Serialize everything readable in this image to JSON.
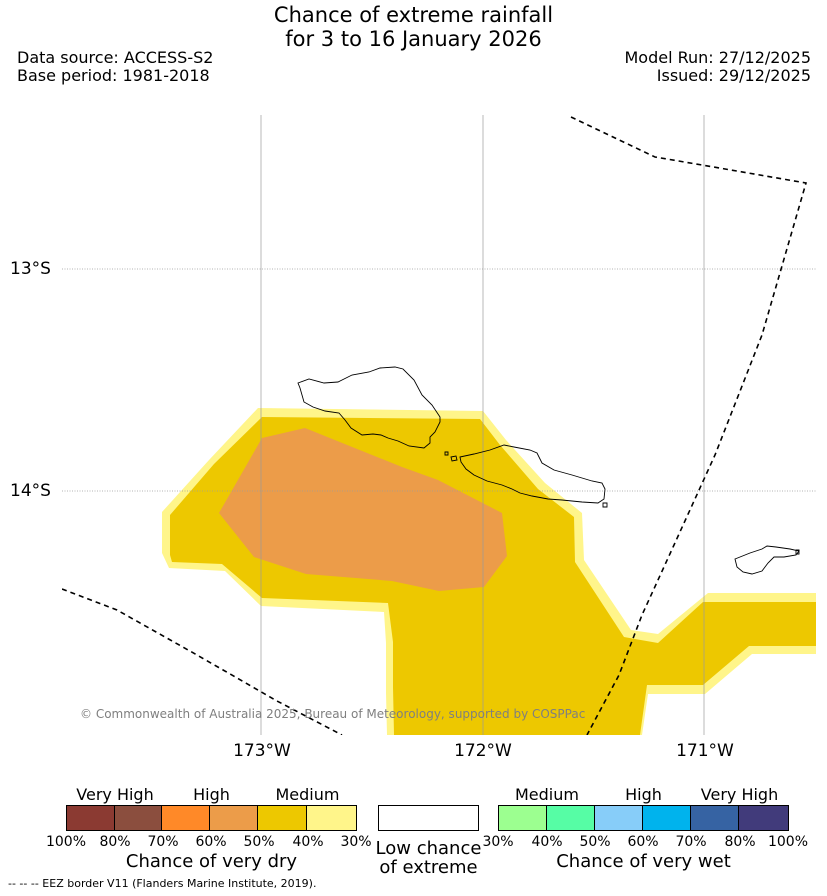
{
  "title": {
    "line1": "Chance of extreme rainfall",
    "line2": "for 3 to 16 January 2026"
  },
  "meta": {
    "data_source": "Data source: ACCESS-S2",
    "base_period": "Base period: 1981-2018",
    "model_run": "Model Run: 27/12/2025",
    "issued": "Issued: 29/12/2025"
  },
  "map": {
    "lat_labels": [
      "13°S",
      "14°S"
    ],
    "lon_labels": [
      "173°W",
      "172°W",
      "171°W"
    ],
    "copyright": "© Commonwealth of Australia 2025, Bureau of Meteorology, supported by COSPPac",
    "colors": {
      "medium_dry": "#edc800",
      "high_dry": "#ec9c49",
      "edge_dry": "#fff58a",
      "eez_line": "#000000"
    }
  },
  "legend": {
    "dry": {
      "labels": [
        "Very High",
        "High",
        "Medium"
      ],
      "ticks": [
        "100%",
        "80%",
        "70%",
        "60%",
        "50%",
        "40%",
        "30%"
      ],
      "colors": [
        "#8b3a32",
        "#8b4e3e",
        "#ff8928",
        "#ec9c49",
        "#edc800",
        "#fff58a"
      ],
      "caption": "Chance of very dry"
    },
    "low": {
      "caption_line1": "Low chance",
      "caption_line2": "of extreme",
      "color": "#ffffff"
    },
    "wet": {
      "labels": [
        "Medium",
        "High",
        "Very High"
      ],
      "ticks": [
        "30%",
        "40%",
        "50%",
        "60%",
        "70%",
        "80%",
        "100%"
      ],
      "colors": [
        "#9cff90",
        "#56fda5",
        "#87cdf9",
        "#00b3ed",
        "#3663a3",
        "#413b7b"
      ],
      "caption": "Chance of very wet"
    }
  },
  "footer": {
    "eez_note": "--  --  -- EEZ border V11 (Flanders Marine Institute, 2019)."
  }
}
